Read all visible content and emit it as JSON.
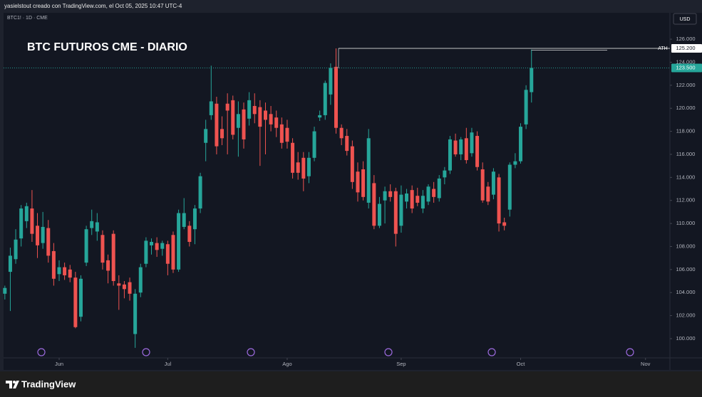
{
  "header": {
    "text": "yasielstout creado con TradingView.com, el Oct 05, 2025 10:47 UTC-4"
  },
  "footer": {
    "brand": "TradingView"
  },
  "chart_data": {
    "type": "candlestick",
    "symbol_label": "BTC1! · 1D · CME",
    "title": "BTC FUTUROS CME - DIARIO",
    "currency": "USD",
    "up_color": "#26a69a",
    "down_color": "#ef5350",
    "grid": false,
    "xlim": [
      -0.24,
      122.5
    ],
    "xticks": [
      {
        "value": 10,
        "label": "Jun"
      },
      {
        "value": 30,
        "label": "Jul"
      },
      {
        "value": 52,
        "label": "Ago"
      },
      {
        "value": 73,
        "label": "Sep"
      },
      {
        "value": 95,
        "label": "Oct"
      },
      {
        "value": 118,
        "label": "Nov"
      }
    ],
    "ylim": [
      98.33,
      128.29
    ],
    "yticks": [
      {
        "value": 100,
        "label": "100.000"
      },
      {
        "value": 102,
        "label": "102.000"
      },
      {
        "value": 104,
        "label": "104.000"
      },
      {
        "value": 106,
        "label": "106.000"
      },
      {
        "value": 108,
        "label": "108.000"
      },
      {
        "value": 110,
        "label": "110.000"
      },
      {
        "value": 112,
        "label": "112.000"
      },
      {
        "value": 114,
        "label": "114.000"
      },
      {
        "value": 116,
        "label": "116.000"
      },
      {
        "value": 118,
        "label": "118.000"
      },
      {
        "value": 120,
        "label": "120.000"
      },
      {
        "value": 122,
        "label": "122.000"
      },
      {
        "value": 124,
        "label": "124.000"
      },
      {
        "value": 126,
        "label": "126.000"
      }
    ],
    "ath": {
      "label": "ATH",
      "value": 125.2,
      "value_label": "125.200"
    },
    "last_price": {
      "value": 123.5,
      "value_label": "123.500"
    },
    "series": {
      "open": [
        103.9,
        105.8,
        106.9,
        108.7,
        110.2,
        111.3,
        109.8,
        108.3,
        109.6,
        107.6,
        105.6,
        106.2,
        106.0,
        105.3,
        101.9,
        106.6,
        109.6,
        109.3,
        109.0,
        106.8,
        109.1,
        104.8,
        104.7,
        104.9,
        100.4,
        104.0,
        106.5,
        108.1,
        108.3,
        107.8,
        108.2,
        109.0,
        106.0,
        109.7,
        109.8,
        109.5,
        111.3,
        117.0,
        119.4,
        120.4,
        118.2,
        120.4,
        120.7,
        118.3,
        119.9,
        119.1,
        120.2,
        120.1,
        119.8,
        119.5,
        119.2,
        118.6,
        118.3,
        117.0,
        115.3,
        115.7,
        114.1,
        115.7,
        119.2,
        119.4,
        121.2,
        123.6,
        118.3,
        117.6,
        116.7,
        114.5,
        114.7,
        111.8,
        113.5,
        109.8,
        112.0,
        112.8,
        112.8,
        109.8,
        111.9,
        112.9,
        112.4,
        111.3,
        111.9,
        113.0,
        112.2,
        114.0,
        114.6,
        117.2,
        116.0,
        117.4,
        116.1,
        117.6,
        114.7,
        113.2,
        112.5,
        114.0,
        110.1,
        111.2,
        115.1,
        115.4,
        118.6,
        121.4
      ],
      "high": [
        104.6,
        107.9,
        109.5,
        111.6,
        111.8,
        112.9,
        110.9,
        111.0,
        110.3,
        108.3,
        106.8,
        106.6,
        106.4,
        105.8,
        105.5,
        109.8,
        111.2,
        110.9,
        109.4,
        107.3,
        109.4,
        105.5,
        105.0,
        105.3,
        104.3,
        106.5,
        108.8,
        108.7,
        108.8,
        108.5,
        108.5,
        109.3,
        111.2,
        112.2,
        110.2,
        111.6,
        114.4,
        119.0,
        123.7,
        121.0,
        119.3,
        121.3,
        121.1,
        120.6,
        120.5,
        121.4,
        121.3,
        120.7,
        120.5,
        120.2,
        119.8,
        119.2,
        119.0,
        117.4,
        116.2,
        116.2,
        116.2,
        118.4,
        119.8,
        122.4,
        123.9,
        125.2,
        118.6,
        118.2,
        117.2,
        115.3,
        115.4,
        118.2,
        114.2,
        112.3,
        113.2,
        113.4,
        113.1,
        113.3,
        113.0,
        113.3,
        113.1,
        112.9,
        113.4,
        113.6,
        114.2,
        114.9,
        117.6,
        117.8,
        117.5,
        118.3,
        118.3,
        118.0,
        115.3,
        113.6,
        114.8,
        114.3,
        110.5,
        115.3,
        116.1,
        118.7,
        122.0,
        125.1
      ],
      "low": [
        103.4,
        102.4,
        106.5,
        108.0,
        109.6,
        108.4,
        107.0,
        107.8,
        106.6,
        104.6,
        105.0,
        105.1,
        104.9,
        100.9,
        101.5,
        106.3,
        109.0,
        108.5,
        106.0,
        104.8,
        104.6,
        102.5,
        103.5,
        103.3,
        99.2,
        103.6,
        106.2,
        107.3,
        107.1,
        107.2,
        105.5,
        105.7,
        105.8,
        109.5,
        108.0,
        108.2,
        110.9,
        115.4,
        119.0,
        116.0,
        116.8,
        116.0,
        117.3,
        115.8,
        116.5,
        118.5,
        118.7,
        115.0,
        116.0,
        118.0,
        117.5,
        116.5,
        116.5,
        113.9,
        113.8,
        112.8,
        113.5,
        115.4,
        118.9,
        119.0,
        120.3,
        117.8,
        116.8,
        115.9,
        113.0,
        111.9,
        112.0,
        111.3,
        109.5,
        109.6,
        110.0,
        111.9,
        108.0,
        109.2,
        111.3,
        110.9,
        111.5,
        110.9,
        111.6,
        111.8,
        111.9,
        113.4,
        114.3,
        115.8,
        115.5,
        115.2,
        115.8,
        114.6,
        111.8,
        111.6,
        112.1,
        109.3,
        109.4,
        110.6,
        114.8,
        115.2,
        118.2,
        120.5
      ],
      "close": [
        104.4,
        107.2,
        108.6,
        111.3,
        111.5,
        109.1,
        108.1,
        109.7,
        107.2,
        105.2,
        106.2,
        105.5,
        105.3,
        101.0,
        105.2,
        109.5,
        110.2,
        110.1,
        106.6,
        105.9,
        105.0,
        104.6,
        104.3,
        103.9,
        103.9,
        106.2,
        108.5,
        108.4,
        107.7,
        108.3,
        106.5,
        106.0,
        110.9,
        110.9,
        108.4,
        111.3,
        114.1,
        118.2,
        120.6,
        116.7,
        117.4,
        119.8,
        117.7,
        119.5,
        117.3,
        120.7,
        119.5,
        118.4,
        119.0,
        118.6,
        118.3,
        117.0,
        117.1,
        114.4,
        114.4,
        113.9,
        115.7,
        118.0,
        119.4,
        122.2,
        123.5,
        118.3,
        117.4,
        116.3,
        113.6,
        112.7,
        112.3,
        117.4,
        109.8,
        111.7,
        112.8,
        112.3,
        109.1,
        112.5,
        112.6,
        111.3,
        111.8,
        112.4,
        113.2,
        112.3,
        113.9,
        114.6,
        117.3,
        116.0,
        117.3,
        115.5,
        117.9,
        114.9,
        112.0,
        111.9,
        114.5,
        110.0,
        109.8,
        115.1,
        115.4,
        118.4,
        121.6,
        123.5
      ]
    }
  }
}
